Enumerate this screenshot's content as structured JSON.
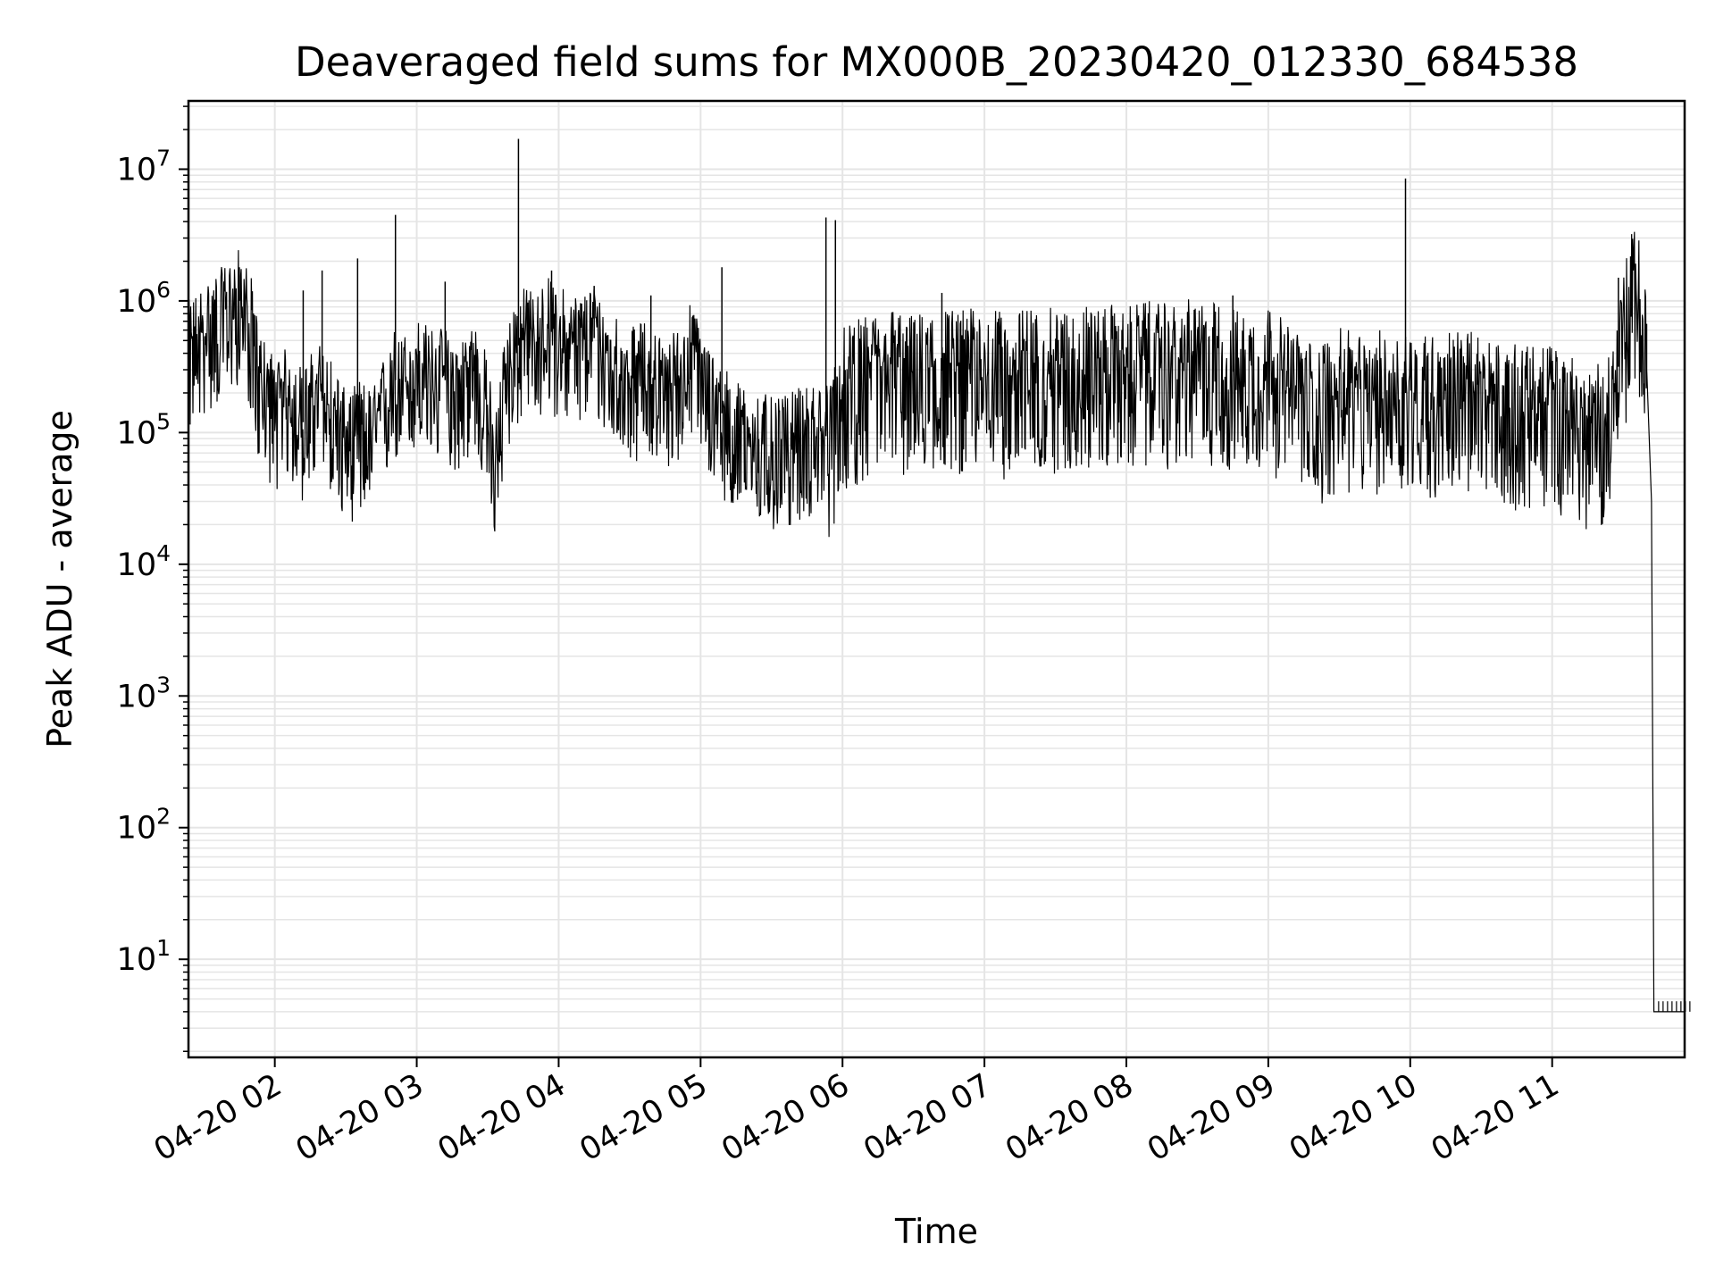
{
  "chart_data": {
    "type": "line",
    "title": "Deaveraged field sums for MX000B_20230420_012330_684538",
    "xlabel": "Time",
    "ylabel": "Peak ADU - average",
    "y_scale": "log",
    "ylim": [
      1.8,
      33000000
    ],
    "xlim": [
      "2023-04-20 01:23:30",
      "2023-04-20 11:56:00"
    ],
    "grid": true,
    "line_color": "#000000",
    "grid_color": "#e5e5e5",
    "x_ticks": [
      {
        "value": "2023-04-20 02:00",
        "label": "04-20 02"
      },
      {
        "value": "2023-04-20 03:00",
        "label": "04-20 03"
      },
      {
        "value": "2023-04-20 04:00",
        "label": "04-20 04"
      },
      {
        "value": "2023-04-20 05:00",
        "label": "04-20 05"
      },
      {
        "value": "2023-04-20 06:00",
        "label": "04-20 06"
      },
      {
        "value": "2023-04-20 07:00",
        "label": "04-20 07"
      },
      {
        "value": "2023-04-20 08:00",
        "label": "04-20 08"
      },
      {
        "value": "2023-04-20 09:00",
        "label": "04-20 09"
      },
      {
        "value": "2023-04-20 10:00",
        "label": "04-20 10"
      },
      {
        "value": "2023-04-20 11:00",
        "label": "04-20 11"
      }
    ],
    "y_ticks": [
      {
        "value": 10,
        "base": "10",
        "exp": "1"
      },
      {
        "value": 100,
        "base": "10",
        "exp": "2"
      },
      {
        "value": 1000,
        "base": "10",
        "exp": "3"
      },
      {
        "value": 10000,
        "base": "10",
        "exp": "4"
      },
      {
        "value": 100000,
        "base": "10",
        "exp": "5"
      },
      {
        "value": 1000000,
        "base": "10",
        "exp": "6"
      },
      {
        "value": 10000000,
        "base": "10",
        "exp": "7"
      }
    ],
    "series": [
      {
        "x": [
          "2023-04-20 01:23:30",
          "2023-04-20 01:30",
          "2023-04-20 01:37",
          "2023-04-20 01:42",
          "2023-04-20 01:45",
          "2023-04-20 01:50",
          "2023-04-20 01:53",
          "2023-04-20 02:00",
          "2023-04-20 02:06",
          "2023-04-20 02:12",
          "2023-04-20 02:18",
          "2023-04-20 02:24",
          "2023-04-20 02:30",
          "2023-04-20 02:36",
          "2023-04-20 02:42",
          "2023-04-20 02:48",
          "2023-04-20 02:51",
          "2023-04-20 02:54",
          "2023-04-20 03:00",
          "2023-04-20 03:06",
          "2023-04-20 03:12",
          "2023-04-20 03:18",
          "2023-04-20 03:24",
          "2023-04-20 03:30",
          "2023-04-20 03:33",
          "2023-04-20 03:38",
          "2023-04-20 03:44",
          "2023-04-20 03:50",
          "2023-04-20 03:56",
          "2023-04-20 04:02",
          "2023-04-20 04:08",
          "2023-04-20 04:14",
          "2023-04-20 04:20",
          "2023-04-20 04:26",
          "2023-04-20 04:32",
          "2023-04-20 04:38",
          "2023-04-20 04:44",
          "2023-04-20 04:50",
          "2023-04-20 04:56",
          "2023-04-20 05:02",
          "2023-04-20 05:08",
          "2023-04-20 05:14",
          "2023-04-20 05:20",
          "2023-04-20 05:26",
          "2023-04-20 05:32",
          "2023-04-20 05:38",
          "2023-04-20 05:44",
          "2023-04-20 05:50",
          "2023-04-20 05:55",
          "2023-04-20 06:00",
          "2023-04-20 06:10",
          "2023-04-20 06:20",
          "2023-04-20 06:30",
          "2023-04-20 06:40",
          "2023-04-20 06:50",
          "2023-04-20 07:00",
          "2023-04-20 07:10",
          "2023-04-20 07:20",
          "2023-04-20 07:30",
          "2023-04-20 07:40",
          "2023-04-20 07:50",
          "2023-04-20 08:00",
          "2023-04-20 08:10",
          "2023-04-20 08:20",
          "2023-04-20 08:30",
          "2023-04-20 08:40",
          "2023-04-20 08:50",
          "2023-04-20 09:00",
          "2023-04-20 09:10",
          "2023-04-20 09:20",
          "2023-04-20 09:30",
          "2023-04-20 09:40",
          "2023-04-20 09:50",
          "2023-04-20 10:00",
          "2023-04-20 10:10",
          "2023-04-20 10:20",
          "2023-04-20 10:30",
          "2023-04-20 10:40",
          "2023-04-20 10:50",
          "2023-04-20 11:00",
          "2023-04-20 11:10",
          "2023-04-20 11:18",
          "2023-04-20 11:22",
          "2023-04-20 11:26",
          "2023-04-20 11:30",
          "2023-04-20 11:33",
          "2023-04-20 11:36",
          "2023-04-20 11:38",
          "2023-04-20 11:40",
          "2023-04-20 11:42",
          "2023-04-20 11:43",
          "2023-04-20 11:45",
          "2023-04-20 11:56"
        ],
        "y": [
          400000,
          550000,
          700000,
          850000,
          1000000,
          600000,
          250000,
          150000,
          180000,
          120000,
          200000,
          150000,
          80000,
          100000,
          90000,
          200000,
          250000,
          220000,
          300000,
          250000,
          250000,
          200000,
          300000,
          150000,
          50000,
          300000,
          500000,
          500000,
          600000,
          500000,
          450000,
          550000,
          400000,
          300000,
          250000,
          300000,
          200000,
          250000,
          400000,
          200000,
          150000,
          100000,
          90000,
          80000,
          70000,
          80000,
          90000,
          100000,
          90000,
          200000,
          250000,
          300000,
          250000,
          300000,
          280000,
          300000,
          250000,
          300000,
          280000,
          300000,
          300000,
          300000,
          320000,
          300000,
          350000,
          300000,
          280000,
          300000,
          200000,
          150000,
          200000,
          180000,
          200000,
          200000,
          180000,
          200000,
          180000,
          150000,
          150000,
          150000,
          120000,
          100000,
          120000,
          200000,
          500000,
          1000000,
          1200000,
          800000,
          300000,
          30000,
          4,
          4,
          4
        ]
      }
    ],
    "spikes": [
      {
        "x": "2023-04-20 01:45",
        "y": 1800000
      },
      {
        "x": "2023-04-20 02:12",
        "y": 1200000
      },
      {
        "x": "2023-04-20 02:20",
        "y": 1700000
      },
      {
        "x": "2023-04-20 02:35",
        "y": 2100000
      },
      {
        "x": "2023-04-20 02:51",
        "y": 4500000
      },
      {
        "x": "2023-04-20 03:12",
        "y": 1400000
      },
      {
        "x": "2023-04-20 03:43",
        "y": 17000000
      },
      {
        "x": "2023-04-20 03:57",
        "y": 1700000
      },
      {
        "x": "2023-04-20 04:15",
        "y": 1300000
      },
      {
        "x": "2023-04-20 04:39",
        "y": 1100000
      },
      {
        "x": "2023-04-20 05:09",
        "y": 1800000
      },
      {
        "x": "2023-04-20 05:53",
        "y": 4300000
      },
      {
        "x": "2023-04-20 05:57",
        "y": 4100000
      },
      {
        "x": "2023-04-20 06:42",
        "y": 1150000
      },
      {
        "x": "2023-04-20 08:45",
        "y": 1100000
      },
      {
        "x": "2023-04-20 09:58",
        "y": 8500000
      },
      {
        "x": "2023-04-20 11:28",
        "y": 1500000
      }
    ]
  }
}
